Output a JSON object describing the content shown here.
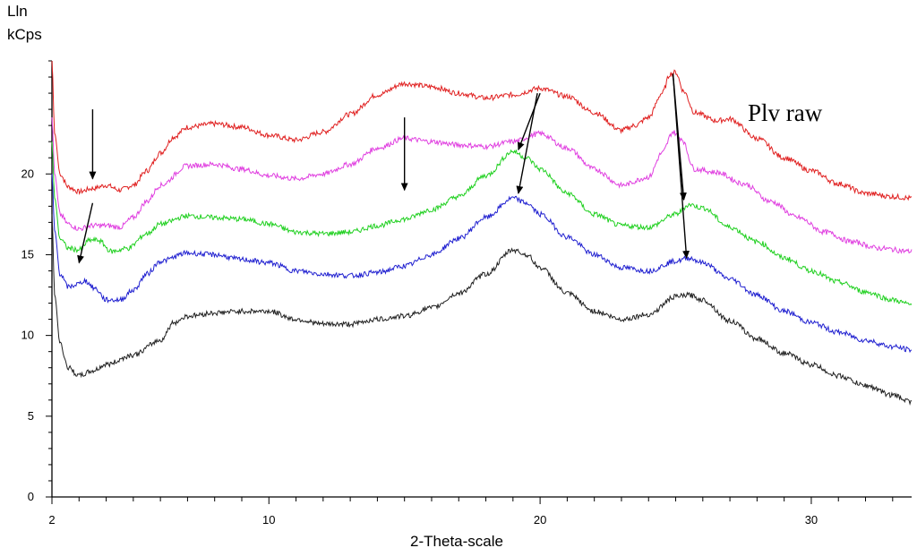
{
  "chart_data": {
    "type": "line",
    "title": "",
    "annotation": "Plv raw",
    "ylabel_line1": "Lln",
    "ylabel_line2": "kCps",
    "xlabel": "2-Theta-scale",
    "xlim": [
      2,
      33.7
    ],
    "ylim": [
      0,
      27
    ],
    "x_ticks": [
      2,
      10,
      20,
      30
    ],
    "y_ticks": [
      0,
      5,
      10,
      15,
      20
    ],
    "grid": false,
    "series": [
      {
        "color": "#e02020",
        "points": [
          [
            2.0,
            27
          ],
          [
            2.1,
            22.5
          ],
          [
            2.3,
            20.0
          ],
          [
            2.6,
            19.2
          ],
          [
            3.0,
            18.9
          ],
          [
            3.5,
            19.1
          ],
          [
            4.0,
            19.3
          ],
          [
            4.5,
            19.0
          ],
          [
            5.0,
            19.3
          ],
          [
            5.5,
            20.2
          ],
          [
            6.0,
            21.3
          ],
          [
            6.5,
            22.3
          ],
          [
            7.0,
            22.9
          ],
          [
            8.0,
            23.1
          ],
          [
            9.0,
            22.9
          ],
          [
            10.0,
            22.4
          ],
          [
            11.0,
            22.1
          ],
          [
            12.0,
            22.6
          ],
          [
            13.0,
            23.7
          ],
          [
            14.0,
            24.9
          ],
          [
            15.0,
            25.6
          ],
          [
            16.0,
            25.4
          ],
          [
            17.0,
            25.0
          ],
          [
            18.0,
            24.7
          ],
          [
            19.0,
            24.9
          ],
          [
            20.0,
            25.3
          ],
          [
            21.0,
            24.8
          ],
          [
            22.0,
            23.8
          ],
          [
            23.0,
            22.7
          ],
          [
            23.5,
            23.0
          ],
          [
            24.0,
            23.5
          ],
          [
            24.5,
            25.0
          ],
          [
            24.8,
            26.2
          ],
          [
            25.0,
            26.3
          ],
          [
            25.3,
            25.1
          ],
          [
            25.7,
            23.8
          ],
          [
            26.5,
            23.3
          ],
          [
            27.0,
            23.4
          ],
          [
            28.0,
            22.2
          ],
          [
            29.0,
            21.0
          ],
          [
            30.0,
            20.2
          ],
          [
            31.0,
            19.4
          ],
          [
            32.0,
            18.8
          ],
          [
            33.0,
            18.6
          ],
          [
            33.7,
            18.5
          ]
        ]
      },
      {
        "color": "#e040e0",
        "points": [
          [
            2.0,
            23.5
          ],
          [
            2.1,
            20.0
          ],
          [
            2.3,
            17.5
          ],
          [
            2.6,
            16.9
          ],
          [
            3.0,
            16.6
          ],
          [
            3.5,
            16.8
          ],
          [
            4.0,
            16.8
          ],
          [
            4.5,
            16.7
          ],
          [
            5.0,
            17.3
          ],
          [
            5.5,
            18.3
          ],
          [
            6.0,
            19.3
          ],
          [
            7.0,
            20.5
          ],
          [
            8.0,
            20.6
          ],
          [
            9.0,
            20.3
          ],
          [
            10.0,
            19.9
          ],
          [
            11.0,
            19.7
          ],
          [
            12.0,
            20.0
          ],
          [
            13.0,
            20.6
          ],
          [
            14.0,
            21.6
          ],
          [
            15.0,
            22.2
          ],
          [
            16.0,
            22.0
          ],
          [
            17.0,
            21.8
          ],
          [
            18.0,
            21.7
          ],
          [
            19.0,
            22.0
          ],
          [
            20.0,
            22.5
          ],
          [
            21.0,
            21.6
          ],
          [
            22.0,
            20.3
          ],
          [
            23.0,
            19.3
          ],
          [
            24.0,
            19.8
          ],
          [
            24.5,
            21.3
          ],
          [
            24.9,
            22.6
          ],
          [
            25.2,
            22.2
          ],
          [
            25.7,
            20.3
          ],
          [
            26.5,
            20.1
          ],
          [
            27.5,
            19.4
          ],
          [
            28.5,
            18.3
          ],
          [
            29.5,
            17.3
          ],
          [
            30.5,
            16.4
          ],
          [
            31.5,
            15.8
          ],
          [
            32.5,
            15.4
          ],
          [
            33.7,
            15.2
          ]
        ]
      },
      {
        "color": "#20d020",
        "points": [
          [
            2.0,
            22.0
          ],
          [
            2.1,
            18.5
          ],
          [
            2.3,
            16.0
          ],
          [
            2.6,
            15.4
          ],
          [
            3.0,
            15.3
          ],
          [
            3.4,
            15.9
          ],
          [
            3.7,
            15.9
          ],
          [
            4.2,
            15.2
          ],
          [
            4.8,
            15.4
          ],
          [
            5.5,
            16.3
          ],
          [
            6.0,
            16.9
          ],
          [
            7.0,
            17.4
          ],
          [
            8.0,
            17.3
          ],
          [
            9.0,
            17.2
          ],
          [
            10.0,
            16.9
          ],
          [
            11.0,
            16.4
          ],
          [
            12.0,
            16.3
          ],
          [
            13.0,
            16.4
          ],
          [
            14.0,
            16.8
          ],
          [
            15.0,
            17.2
          ],
          [
            16.0,
            17.8
          ],
          [
            17.0,
            18.6
          ],
          [
            18.0,
            19.9
          ],
          [
            19.0,
            21.4
          ],
          [
            19.5,
            21.0
          ],
          [
            20.0,
            20.3
          ],
          [
            21.0,
            18.8
          ],
          [
            22.0,
            17.5
          ],
          [
            23.0,
            16.8
          ],
          [
            24.0,
            16.7
          ],
          [
            25.0,
            17.5
          ],
          [
            25.5,
            18.1
          ],
          [
            26.0,
            17.9
          ],
          [
            27.0,
            16.7
          ],
          [
            28.0,
            15.8
          ],
          [
            29.0,
            14.8
          ],
          [
            30.0,
            14.0
          ],
          [
            31.0,
            13.3
          ],
          [
            32.0,
            12.7
          ],
          [
            33.0,
            12.2
          ],
          [
            33.7,
            11.9
          ]
        ]
      },
      {
        "color": "#2020d0",
        "points": [
          [
            2.0,
            20.0
          ],
          [
            2.1,
            16.5
          ],
          [
            2.3,
            13.8
          ],
          [
            2.6,
            13.0
          ],
          [
            3.0,
            13.2
          ],
          [
            3.2,
            13.4
          ],
          [
            3.6,
            12.9
          ],
          [
            4.0,
            12.2
          ],
          [
            4.5,
            12.2
          ],
          [
            5.0,
            12.8
          ],
          [
            5.5,
            13.8
          ],
          [
            6.0,
            14.6
          ],
          [
            7.0,
            15.1
          ],
          [
            8.0,
            15.0
          ],
          [
            9.0,
            14.7
          ],
          [
            10.0,
            14.5
          ],
          [
            11.0,
            14.0
          ],
          [
            12.0,
            13.8
          ],
          [
            13.0,
            13.7
          ],
          [
            14.0,
            13.9
          ],
          [
            15.0,
            14.3
          ],
          [
            16.0,
            15.0
          ],
          [
            17.0,
            16.0
          ],
          [
            18.0,
            17.3
          ],
          [
            19.0,
            18.5
          ],
          [
            19.5,
            18.2
          ],
          [
            20.0,
            17.5
          ],
          [
            21.0,
            16.1
          ],
          [
            22.0,
            15.0
          ],
          [
            23.0,
            14.2
          ],
          [
            24.0,
            14.0
          ],
          [
            25.0,
            14.6
          ],
          [
            25.5,
            14.8
          ],
          [
            26.0,
            14.5
          ],
          [
            27.0,
            13.5
          ],
          [
            28.0,
            12.5
          ],
          [
            29.0,
            11.5
          ],
          [
            30.0,
            10.8
          ],
          [
            31.0,
            10.2
          ],
          [
            32.0,
            9.7
          ],
          [
            33.0,
            9.3
          ],
          [
            33.7,
            9.1
          ]
        ]
      },
      {
        "color": "#202020",
        "points": [
          [
            2.0,
            17.5
          ],
          [
            2.1,
            12.5
          ],
          [
            2.3,
            9.5
          ],
          [
            2.6,
            8.0
          ],
          [
            3.0,
            7.5
          ],
          [
            3.5,
            7.8
          ],
          [
            4.0,
            8.2
          ],
          [
            5.0,
            8.8
          ],
          [
            6.0,
            9.7
          ],
          [
            6.5,
            10.8
          ],
          [
            7.0,
            11.2
          ],
          [
            8.0,
            11.4
          ],
          [
            9.0,
            11.5
          ],
          [
            10.0,
            11.5
          ],
          [
            11.0,
            11.0
          ],
          [
            12.0,
            10.7
          ],
          [
            13.0,
            10.7
          ],
          [
            14.0,
            11.0
          ],
          [
            15.0,
            11.2
          ],
          [
            16.0,
            11.7
          ],
          [
            17.0,
            12.6
          ],
          [
            18.0,
            13.8
          ],
          [
            19.0,
            15.3
          ],
          [
            19.5,
            15.0
          ],
          [
            20.0,
            14.2
          ],
          [
            21.0,
            12.6
          ],
          [
            22.0,
            11.5
          ],
          [
            23.0,
            11.0
          ],
          [
            24.0,
            11.3
          ],
          [
            25.0,
            12.4
          ],
          [
            25.5,
            12.5
          ],
          [
            26.0,
            12.2
          ],
          [
            27.0,
            10.9
          ],
          [
            28.0,
            9.8
          ],
          [
            29.0,
            8.9
          ],
          [
            30.0,
            8.2
          ],
          [
            31.0,
            7.5
          ],
          [
            32.0,
            6.9
          ],
          [
            33.0,
            6.3
          ],
          [
            33.7,
            5.9
          ]
        ]
      }
    ],
    "arrows": [
      {
        "from": [
          3.5,
          24.0
        ],
        "to": [
          3.5,
          19.7
        ]
      },
      {
        "from": [
          15.0,
          23.5
        ],
        "to": [
          15.0,
          19.0
        ]
      },
      {
        "from": [
          3.5,
          18.2
        ],
        "to": [
          3.0,
          14.5
        ]
      },
      {
        "from": [
          19.9,
          25.0
        ],
        "to": [
          19.2,
          18.8
        ]
      },
      {
        "from": [
          20.0,
          25.0
        ],
        "to": [
          19.2,
          21.5
        ]
      },
      {
        "from": [
          24.9,
          26.2
        ],
        "to": [
          25.3,
          18.4
        ]
      },
      {
        "from": [
          24.9,
          26.2
        ],
        "to": [
          25.4,
          14.8
        ]
      }
    ]
  }
}
